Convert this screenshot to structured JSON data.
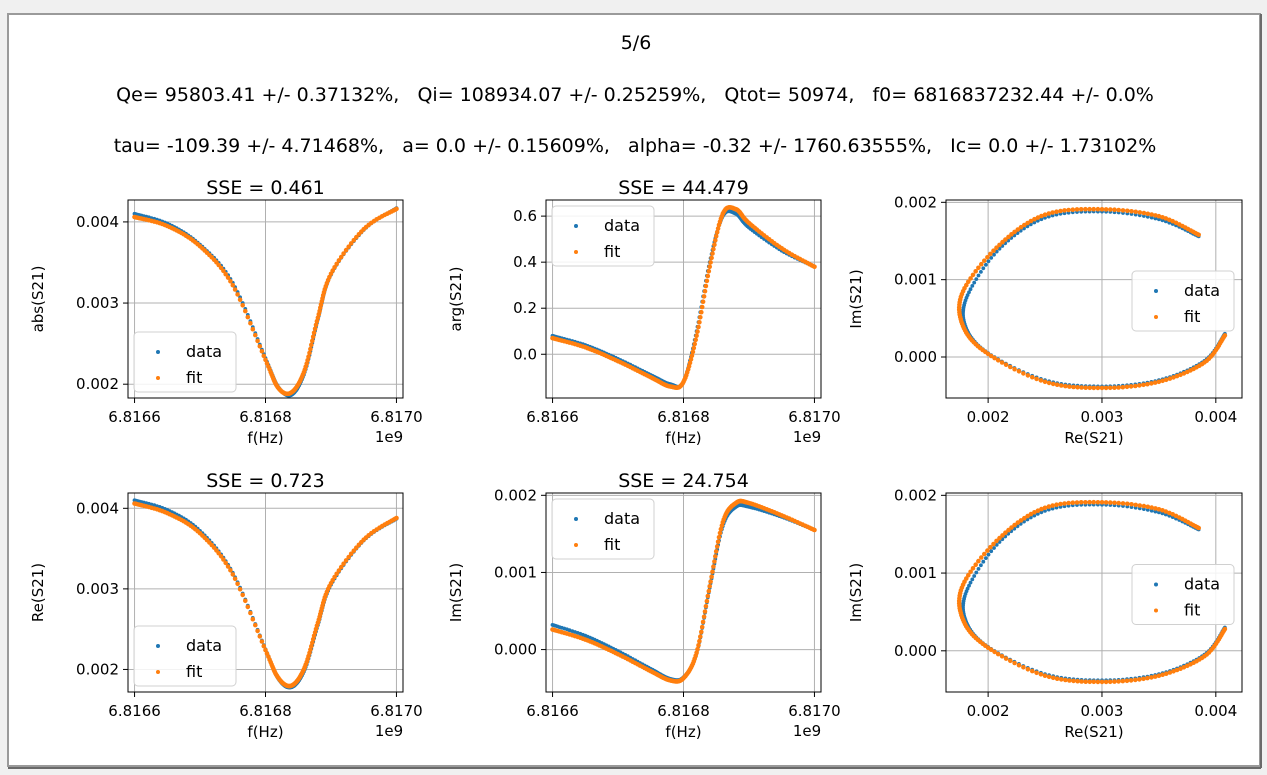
{
  "figure": {
    "page_label": "5/6",
    "params_line1": "Qe= 95803.41 +/- 0.37132%,   Qi= 108934.07 +/- 0.25259%,   Qtot= 50974,   f0= 6816837232.44 +/- 0.0%",
    "params_line2": "tau= -109.39 +/- 4.71468%,   a= 0.0 +/- 0.15609%,   alpha= -0.32 +/- 1760.63555%,   Ic= 0.0 +/- 1.73102%"
  },
  "colors": {
    "data": "#1f77b4",
    "fit": "#ff7f0e",
    "grid": "#b0b0b0",
    "background": "#ffffff",
    "frame": "#f0f0f0"
  },
  "chart_data": [
    {
      "type": "scatter",
      "title": "SSE = 0.461",
      "xlabel": "f(Hz)",
      "ylabel": "abs(S21)",
      "x_offset_label": "1e9",
      "xlim": [
        6.81659,
        6.81701
      ],
      "ylim": [
        0.00183,
        0.00427
      ],
      "xticks": [
        6.8166,
        6.8168,
        6.817
      ],
      "xtick_labels": [
        "6.8166",
        "6.8168",
        "6.8170"
      ],
      "yticks": [
        0.002,
        0.003,
        0.004
      ],
      "ytick_labels": [
        "0.002",
        "0.003",
        "0.004"
      ],
      "legend": {
        "position": "lower-left",
        "entries": [
          "data",
          "fit"
        ]
      },
      "grid": true,
      "series": [
        {
          "name": "data",
          "x": [
            6.8166,
            6.81665,
            6.8167,
            6.81675,
            6.8168,
            6.81682,
            6.81684,
            6.81686,
            6.81688,
            6.8169,
            6.81695,
            6.817
          ],
          "y": [
            0.0041,
            0.00398,
            0.00372,
            0.00325,
            0.00232,
            0.00196,
            0.00187,
            0.00215,
            0.0028,
            0.00335,
            0.0039,
            0.00417
          ]
        },
        {
          "name": "fit",
          "x": [
            6.8166,
            6.81665,
            6.8167,
            6.81675,
            6.8168,
            6.81682,
            6.81684,
            6.81686,
            6.81688,
            6.8169,
            6.81695,
            6.817
          ],
          "y": [
            0.00406,
            0.00395,
            0.0037,
            0.00322,
            0.0023,
            0.00195,
            0.0019,
            0.00218,
            0.00282,
            0.00336,
            0.00391,
            0.00416
          ]
        }
      ]
    },
    {
      "type": "scatter",
      "title": "SSE = 44.479",
      "xlabel": "f(Hz)",
      "ylabel": "arg(S21)",
      "x_offset_label": "1e9",
      "xlim": [
        6.81659,
        6.81701
      ],
      "ylim": [
        -0.19,
        0.67
      ],
      "xticks": [
        6.8166,
        6.8168,
        6.817
      ],
      "xtick_labels": [
        "6.8166",
        "6.8168",
        "6.8170"
      ],
      "yticks": [
        0.0,
        0.2,
        0.4,
        0.6
      ],
      "ytick_labels": [
        "0.0",
        "0.2",
        "0.4",
        "0.6"
      ],
      "legend": {
        "position": "upper-left",
        "entries": [
          "data",
          "fit"
        ]
      },
      "grid": true,
      "series": [
        {
          "name": "data",
          "x": [
            6.8166,
            6.81665,
            6.8167,
            6.81675,
            6.81678,
            6.8168,
            6.81682,
            6.81684,
            6.81686,
            6.81688,
            6.8169,
            6.81695,
            6.817
          ],
          "y": [
            0.08,
            0.04,
            -0.02,
            -0.09,
            -0.13,
            -0.12,
            0.1,
            0.4,
            0.6,
            0.61,
            0.55,
            0.45,
            0.38
          ]
        },
        {
          "name": "fit",
          "x": [
            6.8166,
            6.81665,
            6.8167,
            6.81675,
            6.81678,
            6.8168,
            6.81682,
            6.81684,
            6.81686,
            6.81688,
            6.8169,
            6.81695,
            6.817
          ],
          "y": [
            0.07,
            0.03,
            -0.03,
            -0.1,
            -0.14,
            -0.12,
            0.08,
            0.38,
            0.61,
            0.63,
            0.57,
            0.46,
            0.38
          ]
        }
      ]
    },
    {
      "type": "scatter",
      "title": "",
      "xlabel": "Re(S21)",
      "ylabel": "Im(S21)",
      "xlim": [
        0.00163,
        0.00423
      ],
      "ylim": [
        -0.00053,
        0.00203
      ],
      "xticks": [
        0.002,
        0.003,
        0.004
      ],
      "xtick_labels": [
        "0.002",
        "0.003",
        "0.004"
      ],
      "yticks": [
        0.0,
        0.001,
        0.002
      ],
      "ytick_labels": [
        "0.000",
        "0.001",
        "0.002"
      ],
      "legend": {
        "position": "center-right",
        "entries": [
          "data",
          "fit"
        ]
      },
      "grid": true,
      "series": [
        {
          "name": "data",
          "x": [
            0.00385,
            0.0035,
            0.003,
            0.0025,
            0.0021,
            0.00182,
            0.0018,
            0.002,
            0.0025,
            0.003,
            0.0035,
            0.0039,
            0.00408
          ],
          "y": [
            0.00156,
            0.00178,
            0.00188,
            0.0018,
            0.0014,
            0.0008,
            0.0004,
            5e-05,
            -0.0003,
            -0.00038,
            -0.0003,
            -5e-05,
            0.0003
          ]
        },
        {
          "name": "fit",
          "x": [
            0.00385,
            0.0035,
            0.003,
            0.0025,
            0.0021,
            0.00178,
            0.00178,
            0.002,
            0.0025,
            0.003,
            0.0035,
            0.0039,
            0.00408
          ],
          "y": [
            0.00158,
            0.00182,
            0.00191,
            0.00184,
            0.00145,
            0.00085,
            0.0004,
            4e-05,
            -0.00032,
            -0.0004,
            -0.00032,
            -7e-05,
            0.00028
          ]
        }
      ]
    },
    {
      "type": "scatter",
      "title": "SSE = 0.723",
      "xlabel": "f(Hz)",
      "ylabel": "Re(S21)",
      "x_offset_label": "1e9",
      "xlim": [
        6.81659,
        6.81701
      ],
      "ylim": [
        0.00172,
        0.00419
      ],
      "xticks": [
        6.8166,
        6.8168,
        6.817
      ],
      "xtick_labels": [
        "6.8166",
        "6.8168",
        "6.8170"
      ],
      "yticks": [
        0.002,
        0.003,
        0.004
      ],
      "ytick_labels": [
        "0.002",
        "0.003",
        "0.004"
      ],
      "legend": {
        "position": "lower-left",
        "entries": [
          "data",
          "fit"
        ]
      },
      "grid": true,
      "series": [
        {
          "name": "data",
          "x": [
            6.8166,
            6.81665,
            6.8167,
            6.81675,
            6.8168,
            6.81682,
            6.81684,
            6.81686,
            6.81688,
            6.8169,
            6.81695,
            6.817
          ],
          "y": [
            0.0041,
            0.00398,
            0.00372,
            0.0032,
            0.00225,
            0.00188,
            0.00178,
            0.002,
            0.00255,
            0.00305,
            0.0036,
            0.00387
          ]
        },
        {
          "name": "fit",
          "x": [
            6.8166,
            6.81665,
            6.8167,
            6.81675,
            6.8168,
            6.81682,
            6.81684,
            6.81686,
            6.81688,
            6.8169,
            6.81695,
            6.817
          ],
          "y": [
            0.00406,
            0.00394,
            0.00369,
            0.00318,
            0.00224,
            0.00189,
            0.0018,
            0.00203,
            0.00258,
            0.00307,
            0.00361,
            0.00388
          ]
        }
      ]
    },
    {
      "type": "scatter",
      "title": "SSE = 24.754",
      "xlabel": "f(Hz)",
      "ylabel": "Im(S21)",
      "x_offset_label": "1e9",
      "xlim": [
        6.81659,
        6.81701
      ],
      "ylim": [
        -0.00055,
        0.00203
      ],
      "xticks": [
        6.8166,
        6.8168,
        6.817
      ],
      "xtick_labels": [
        "6.8166",
        "6.8168",
        "6.8170"
      ],
      "yticks": [
        0.0,
        0.001,
        0.002
      ],
      "ytick_labels": [
        "0.000",
        "0.001",
        "0.002"
      ],
      "legend": {
        "position": "upper-left",
        "entries": [
          "data",
          "fit"
        ]
      },
      "grid": true,
      "series": [
        {
          "name": "data",
          "x": [
            6.8166,
            6.81665,
            6.8167,
            6.81675,
            6.81678,
            6.8168,
            6.81682,
            6.81684,
            6.81686,
            6.81688,
            6.8169,
            6.81695,
            6.817
          ],
          "y": [
            0.00032,
            0.00018,
            -2e-05,
            -0.00025,
            -0.00038,
            -0.00036,
            -5e-05,
            0.0008,
            0.0016,
            0.00185,
            0.00185,
            0.00172,
            0.00155
          ]
        },
        {
          "name": "fit",
          "x": [
            6.8166,
            6.81665,
            6.8167,
            6.81675,
            6.81678,
            6.8168,
            6.81682,
            6.81684,
            6.81686,
            6.81688,
            6.8169,
            6.81695,
            6.817
          ],
          "y": [
            0.00026,
            0.00013,
            -6e-05,
            -0.00028,
            -0.0004,
            -0.00037,
            -4e-05,
            0.00082,
            0.00165,
            0.0019,
            0.0019,
            0.00174,
            0.00155
          ]
        }
      ]
    },
    {
      "type": "scatter",
      "title": "",
      "xlabel": "Re(S21)",
      "ylabel": "Im(S21)",
      "xlim": [
        0.00163,
        0.00423
      ],
      "ylim": [
        -0.00053,
        0.00203
      ],
      "xticks": [
        0.002,
        0.003,
        0.004
      ],
      "xtick_labels": [
        "0.002",
        "0.003",
        "0.004"
      ],
      "yticks": [
        0.0,
        0.001,
        0.002
      ],
      "ytick_labels": [
        "0.000",
        "0.001",
        "0.002"
      ],
      "legend": {
        "position": "center-right",
        "entries": [
          "data",
          "fit"
        ]
      },
      "grid": true,
      "series": [
        {
          "name": "data",
          "x": [
            0.00385,
            0.0035,
            0.003,
            0.0025,
            0.0021,
            0.00182,
            0.0018,
            0.002,
            0.0025,
            0.003,
            0.0035,
            0.0039,
            0.00408
          ],
          "y": [
            0.00156,
            0.00178,
            0.00188,
            0.0018,
            0.0014,
            0.0008,
            0.0004,
            5e-05,
            -0.0003,
            -0.00038,
            -0.0003,
            -5e-05,
            0.0003
          ]
        },
        {
          "name": "fit",
          "x": [
            0.00385,
            0.0035,
            0.003,
            0.0025,
            0.0021,
            0.00178,
            0.00178,
            0.002,
            0.0025,
            0.003,
            0.0035,
            0.0039,
            0.00408
          ],
          "y": [
            0.00158,
            0.00182,
            0.00191,
            0.00184,
            0.00145,
            0.00085,
            0.0004,
            4e-05,
            -0.00032,
            -0.0004,
            -0.00032,
            -7e-05,
            0.00028
          ]
        }
      ]
    }
  ]
}
